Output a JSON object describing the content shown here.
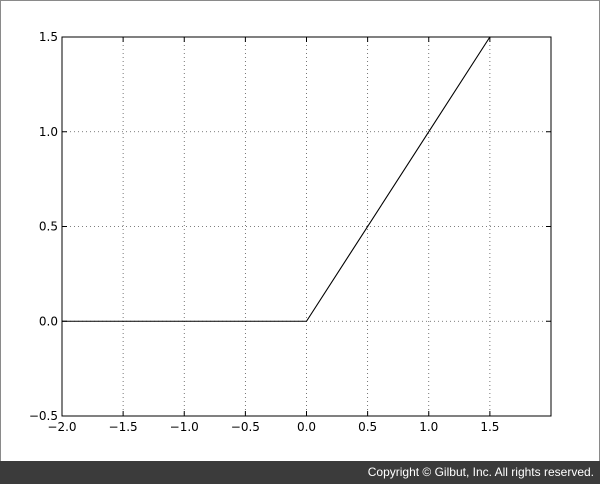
{
  "chart_data": {
    "type": "line",
    "title": "",
    "xlabel": "",
    "ylabel": "",
    "xlim": [
      -2.0,
      2.0
    ],
    "ylim": [
      -0.5,
      1.5
    ],
    "xticks": [
      -2.0,
      -1.5,
      -1.0,
      -0.5,
      0.0,
      0.5,
      1.0,
      1.5
    ],
    "xtick_labels": [
      "−2.0",
      "−1.5",
      "−1.0",
      "−0.5",
      "0.0",
      "0.5",
      "1.0",
      "1.5"
    ],
    "yticks": [
      -0.5,
      0.0,
      0.5,
      1.0,
      1.5
    ],
    "ytick_labels": [
      "−0.5",
      "0.0",
      "0.5",
      "1.0",
      "1.5"
    ],
    "grid": true,
    "legend": "none",
    "line_color": "#000000",
    "series": [
      {
        "x": [
          -2.0,
          0.0,
          1.5
        ],
        "y": [
          0.0,
          0.0,
          1.5
        ]
      }
    ]
  },
  "footer": {
    "copyright": "Copyright © Gilbut, Inc. All rights reserved."
  }
}
